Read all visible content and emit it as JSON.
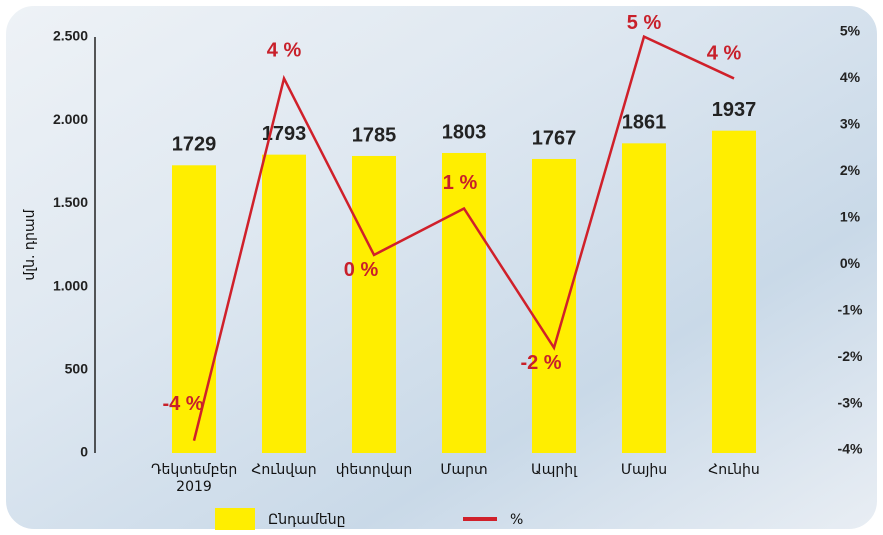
{
  "chart_data": {
    "type": "bar_line",
    "ylabel": "մլն. դրամ",
    "categories": [
      "Դեկտեմբեր 2019",
      "Հունվար",
      "փետրվար",
      "Մարտ",
      "Ապրիլ",
      "Մայիս",
      "Հունիս"
    ],
    "series": [
      {
        "name": "Ընդամենը",
        "type": "bar",
        "color": "#ffee00",
        "values": [
          1729,
          1793,
          1785,
          1803,
          1767,
          1861,
          1937
        ]
      },
      {
        "name": "%",
        "type": "line",
        "color": "#d0202a",
        "axis": "y2",
        "values": [
          -3.8,
          4.0,
          0.2,
          1.2,
          -1.8,
          4.9,
          4.0
        ],
        "value_labels": [
          "-4 %",
          "4 %",
          "0 %",
          "1 %",
          "-2 %",
          "5 %",
          "4 %"
        ]
      }
    ],
    "ylim": [
      0,
      2500
    ],
    "yticks": [
      0,
      500,
      {
        "value": 1000,
        "label": "1.000"
      },
      {
        "value": 1500,
        "label": "1.500"
      },
      {
        "value": 2000,
        "label": "2.000"
      },
      {
        "value": 2500,
        "label": "2.500"
      }
    ],
    "y2lim": [
      -4,
      5
    ],
    "y2ticks": [
      {
        "value": -4,
        "label": "-4%"
      },
      {
        "value": -3,
        "label": "-3%"
      },
      {
        "value": -2,
        "label": "-2%"
      },
      {
        "value": -1,
        "label": "-1%"
      },
      {
        "value": 0,
        "label": "0%"
      },
      {
        "value": 1,
        "label": "1%"
      },
      {
        "value": 2,
        "label": "2%"
      },
      {
        "value": 3,
        "label": "3%"
      },
      {
        "value": 4,
        "label": "4%"
      },
      {
        "value": 5,
        "label": "5%"
      }
    ]
  }
}
